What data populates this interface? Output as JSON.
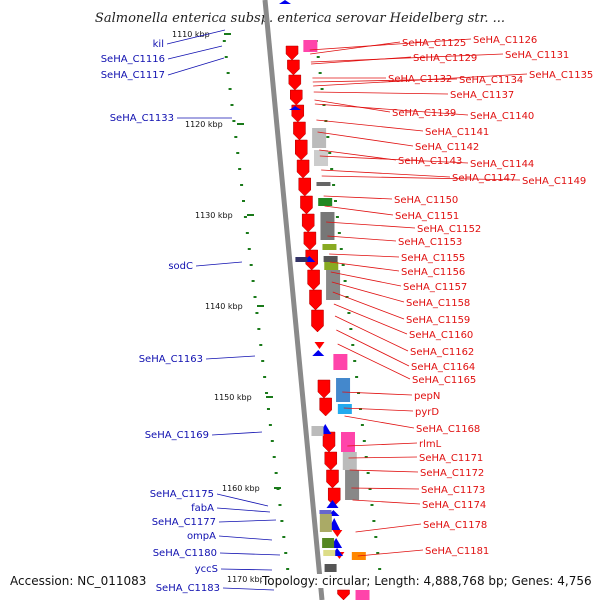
{
  "title": "Salmonella enterica subsp. enterica serovar Heidelberg str. ...",
  "footer": {
    "accession": "Accession: NC_011083",
    "topology": "Topology: circular; Length: 4,888,768 bp; Genes: 4,756"
  },
  "colors": {
    "forward_label": "#1010b0",
    "reverse_label": "#e01010",
    "backbone": "#8a8a8a",
    "tick": "#1a7a1a",
    "gene_red": "#ff0000",
    "gene_blue": "#0000ee"
  },
  "ticks": [
    "1110 kbp",
    "1120 kbp",
    "1130 kbp",
    "1140 kbp",
    "1150 kbp",
    "1160 kbp",
    "1170 kbp"
  ],
  "forward_genes": [
    "kil",
    "SeHA_C1116",
    "SeHA_C1117",
    "SeHA_C1133",
    "sodC",
    "SeHA_C1163",
    "SeHA_C1169",
    "SeHA_C1175",
    "fabA",
    "SeHA_C1177",
    "ompA",
    "SeHA_C1180",
    "yccS",
    "SeHA_C1183"
  ],
  "reverse_genes": [
    "SeHA_C1125",
    "SeHA_C1126",
    "SeHA_C1129",
    "SeHA_C1131",
    "SeHA_C1132",
    "SeHA_C1134",
    "SeHA_C1135",
    "SeHA_C1137",
    "SeHA_C1139",
    "SeHA_C1140",
    "SeHA_C1141",
    "SeHA_C1142",
    "SeHA_C1143",
    "SeHA_C1144",
    "SeHA_C1147",
    "SeHA_C1149",
    "SeHA_C1150",
    "SeHA_C1151",
    "SeHA_C1152",
    "SeHA_C1153",
    "SeHA_C1155",
    "SeHA_C1156",
    "SeHA_C1157",
    "SeHA_C1158",
    "SeHA_C1159",
    "SeHA_C1160",
    "SeHA_C1162",
    "SeHA_C1164",
    "SeHA_C1165",
    "pepN",
    "pyrD",
    "SeHA_C1168",
    "rlmL",
    "SeHA_C1171",
    "SeHA_C1172",
    "SeHA_C1173",
    "SeHA_C1174",
    "SeHA_C1178",
    "SeHA_C1181"
  ]
}
